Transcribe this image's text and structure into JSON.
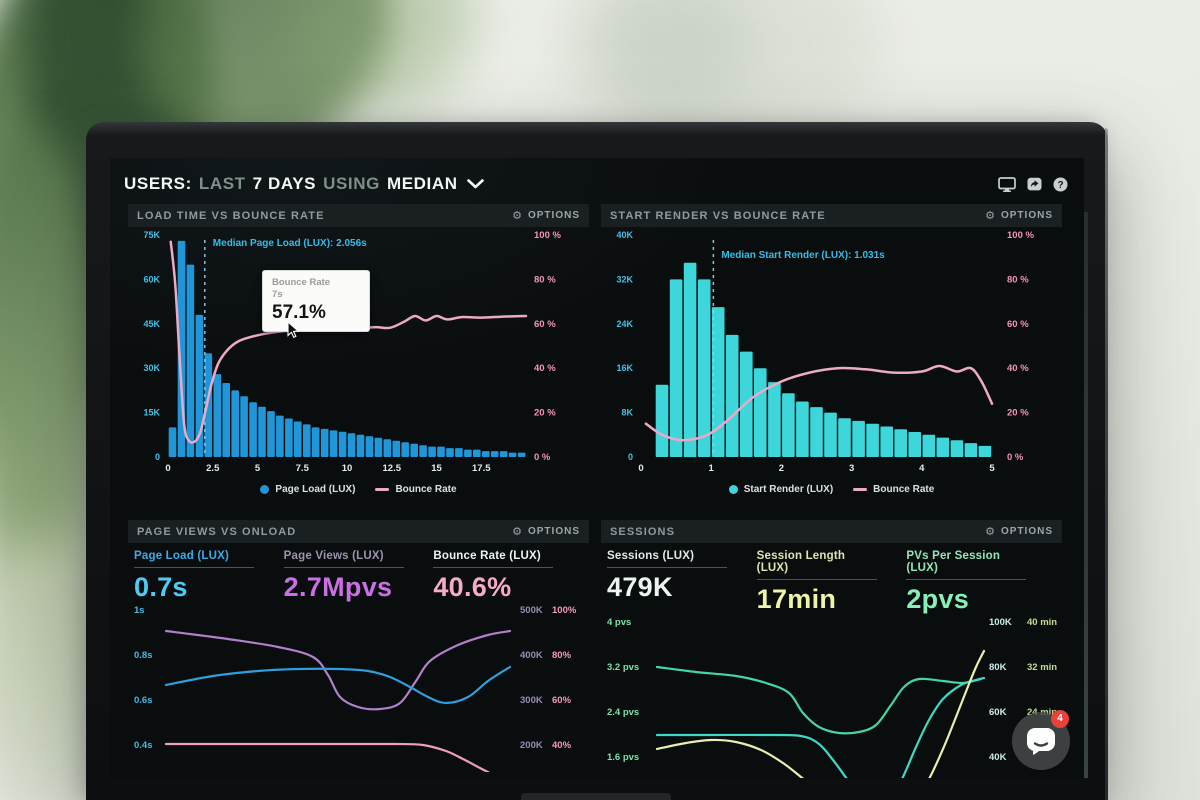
{
  "header": {
    "title_segments": [
      {
        "text": "USERS:",
        "dim": false
      },
      {
        "text": "LAST",
        "dim": true
      },
      {
        "text": "7 DAYS",
        "dim": false
      },
      {
        "text": "USING",
        "dim": true
      },
      {
        "text": "MEDIAN",
        "dim": false
      }
    ],
    "icons": [
      "display",
      "new-window",
      "help"
    ]
  },
  "labels": {
    "options": "OPTIONS"
  },
  "chat": {
    "badge": "4"
  },
  "colors": {
    "screen_bg": "#0a0d0e",
    "panel_header_bg": "#1a2021",
    "bars_blue": "#2095d8",
    "bars_cyan": "#3dd6da",
    "bounce_line_pink": "#edaac6",
    "axis_cyan": "#41c3e8",
    "axis_pink": "#f593b6",
    "median_cyan": "#35bce8",
    "badge_red": "#e8413a"
  },
  "chart_data": [
    {
      "type": "bar",
      "title": "LOAD TIME VS BOUNCE RATE",
      "bars_name": "Page Load (LUX)",
      "line_name": "Bounce Rate",
      "bar_color": "#2095d8",
      "line_color": "#edaac6",
      "x_ticks": [
        "0",
        "2.5",
        "5",
        "7.5",
        "10",
        "12.5",
        "15",
        "17.5"
      ],
      "x_max": 20,
      "bin_width": 0.5,
      "y_left_ticks": [
        "75K",
        "60K",
        "45K",
        "30K",
        "15K",
        "0"
      ],
      "y_left_max_k": 75,
      "y_right_ticks": [
        "100 %",
        "80 %",
        "60 %",
        "40 %",
        "20 %",
        "0 %"
      ],
      "bar_values_k": [
        10,
        73,
        65,
        48,
        35,
        28,
        25,
        22.5,
        20.5,
        18.5,
        17,
        15.5,
        14,
        13,
        12,
        11,
        10,
        9.5,
        9,
        8.5,
        8,
        7.5,
        7,
        6.5,
        6,
        5.5,
        5,
        4.5,
        4,
        3.5,
        3.5,
        3,
        3,
        2.5,
        2.5,
        2,
        2,
        2,
        1.5,
        1.5
      ],
      "line_points_s_pct": [
        [
          0.15,
          97
        ],
        [
          0.4,
          78
        ],
        [
          0.65,
          45
        ],
        [
          0.9,
          15
        ],
        [
          1.15,
          7.5
        ],
        [
          1.5,
          7
        ],
        [
          1.8,
          11
        ],
        [
          2.1,
          21
        ],
        [
          2.4,
          32
        ],
        [
          2.8,
          42
        ],
        [
          3.3,
          48
        ],
        [
          3.9,
          52
        ],
        [
          4.6,
          54
        ],
        [
          5.4,
          55.5
        ],
        [
          6.2,
          56.5
        ],
        [
          7,
          57.1
        ],
        [
          8,
          57.5
        ],
        [
          9,
          57.8
        ],
        [
          10,
          57.5
        ],
        [
          10.8,
          58
        ],
        [
          11.6,
          58.5
        ],
        [
          12.4,
          58.2
        ],
        [
          13.2,
          61
        ],
        [
          13.8,
          63.5
        ],
        [
          14.4,
          61.5
        ],
        [
          15,
          63.5
        ],
        [
          15.6,
          62
        ],
        [
          16.4,
          63
        ],
        [
          17.4,
          62.8
        ],
        [
          18.6,
          63.2
        ],
        [
          20,
          63.5
        ]
      ],
      "median": {
        "label": "Median Page Load (LUX): 2.056s",
        "value_s": 2.056
      },
      "tooltip": {
        "title": "Bounce Rate",
        "x_label": "7s",
        "value": "57.1%"
      },
      "legend": [
        {
          "label": "Page Load (LUX)",
          "swatch": "dot"
        },
        {
          "label": "Bounce Rate",
          "swatch": "line"
        }
      ]
    },
    {
      "type": "bar",
      "title": "START RENDER VS BOUNCE RATE",
      "bars_name": "Start Render (LUX)",
      "line_name": "Bounce Rate",
      "bar_color": "#3dd6da",
      "line_color": "#edaac6",
      "x_ticks": [
        "0",
        "1",
        "2",
        "3",
        "4",
        "5"
      ],
      "x_max": 5.1,
      "bin_width": 0.2,
      "y_left_ticks": [
        "40K",
        "32K",
        "24K",
        "16K",
        "8K",
        "0"
      ],
      "y_left_max_k": 40,
      "y_right_ticks": [
        "100 %",
        "80 %",
        "60 %",
        "40 %",
        "20 %",
        "0 %"
      ],
      "bar_values_k": [
        0,
        13,
        32,
        35,
        32,
        27,
        22,
        19,
        16,
        13.5,
        11.5,
        10,
        9,
        8,
        7,
        6.5,
        6,
        5.5,
        5,
        4.5,
        4,
        3.5,
        3,
        2.5,
        2
      ],
      "line_points_s_pct": [
        [
          0.07,
          15
        ],
        [
          0.3,
          10
        ],
        [
          0.6,
          7.5
        ],
        [
          0.95,
          10
        ],
        [
          1.25,
          17
        ],
        [
          1.6,
          27
        ],
        [
          2.0,
          34
        ],
        [
          2.4,
          38
        ],
        [
          2.8,
          40
        ],
        [
          3.2,
          39.5
        ],
        [
          3.6,
          38
        ],
        [
          4.0,
          38.5
        ],
        [
          4.25,
          41
        ],
        [
          4.5,
          38.5
        ],
        [
          4.7,
          40
        ],
        [
          4.85,
          34
        ],
        [
          5.0,
          24
        ]
      ],
      "median": {
        "label": "Median Start Render (LUX): 1.031s",
        "value_s": 1.031
      },
      "legend": [
        {
          "label": "Start Render (LUX)",
          "swatch": "dot"
        },
        {
          "label": "Bounce Rate",
          "swatch": "line"
        }
      ]
    },
    {
      "type": "line",
      "title": "PAGE VIEWS VS ONLOAD",
      "metrics": [
        {
          "label": "Page Load (LUX)",
          "value": "0.7s",
          "label_color": "#3fa9e6",
          "value_color": "#4ecdf4"
        },
        {
          "label": "Page Views (LUX)",
          "value": "2.7Mpvs",
          "label_color": "#9b93af",
          "value_color": "#cb70e4"
        },
        {
          "label": "Bounce Rate (LUX)",
          "value": "40.6%",
          "label_color": "#eef3f3",
          "value_color": "#f7abca"
        }
      ],
      "y_left_ticks": [
        "1s",
        "0.8s",
        "0.6s",
        "0.4s"
      ],
      "y_left_color": "#46b9de",
      "y_right_rows": [
        [
          "500K",
          "100%"
        ],
        [
          "400K",
          "80%"
        ],
        [
          "300K",
          "60%"
        ],
        [
          "200K",
          "40%"
        ]
      ],
      "y_right_colors": [
        "#978db2",
        "#f49ab9"
      ],
      "right_col_x": [
        392,
        424
      ],
      "lines": [
        {
          "name": "Page Views (LUX)",
          "color": "#b27fca",
          "points": [
            [
              38,
              26
            ],
            [
              100,
              34
            ],
            [
              150,
              42
            ],
            [
              185,
              52
            ],
            [
              200,
              70
            ],
            [
              212,
              92
            ],
            [
              230,
              102
            ],
            [
              252,
              104
            ],
            [
              272,
              98
            ],
            [
              288,
              76
            ],
            [
              302,
              56
            ],
            [
              330,
              40
            ],
            [
              360,
              30
            ],
            [
              382,
              26
            ]
          ]
        },
        {
          "name": "Page Load (LUX)",
          "color": "#2f9fdc",
          "points": [
            [
              38,
              80
            ],
            [
              85,
              71
            ],
            [
              130,
              66
            ],
            [
              170,
              64
            ],
            [
              210,
              64
            ],
            [
              240,
              66
            ],
            [
              262,
              72
            ],
            [
              282,
              82
            ],
            [
              300,
              92
            ],
            [
              318,
              98
            ],
            [
              340,
              92
            ],
            [
              360,
              76
            ],
            [
              382,
              62
            ]
          ]
        },
        {
          "name": "Bounce Rate (LUX)",
          "color": "#ef9fbe",
          "points": [
            [
              38,
              139
            ],
            [
              120,
              139
            ],
            [
              200,
              139
            ],
            [
              265,
              139
            ],
            [
              295,
              140
            ],
            [
              318,
              146
            ],
            [
              335,
              154
            ],
            [
              352,
              163
            ],
            [
              366,
              170
            ],
            [
              376,
              173
            ]
          ]
        }
      ]
    },
    {
      "type": "line",
      "title": "SESSIONS",
      "metrics": [
        {
          "label": "Sessions (LUX)",
          "value": "479K",
          "label_color": "#e3ebe7",
          "value_color": "#ecf6f0"
        },
        {
          "label": "Session Length (LUX)",
          "value": "17min",
          "label_color": "#dee5b0",
          "value_color": "#f0f3a8"
        },
        {
          "label": "PVs Per Session (LUX)",
          "value": "2pvs",
          "label_color": "#92e7ba",
          "value_color": "#8aeeb8"
        }
      ],
      "y_left_ticks": [
        "4 pvs",
        "3.2 pvs",
        "2.4 pvs",
        "1.6 pvs"
      ],
      "y_left_color": "#7fe2a8",
      "y_right_rows": [
        [
          "100K",
          "40 min"
        ],
        [
          "80K",
          "32 min"
        ],
        [
          "60K",
          "24 min"
        ],
        [
          "40K",
          ""
        ]
      ],
      "y_right_colors": [
        "#cdeee2",
        "#c6dc8e"
      ],
      "right_col_x": [
        388,
        426
      ],
      "lines": [
        {
          "name": "PVs Per Session (LUX)",
          "color": "#45d6a3",
          "points": [
            [
              56,
              50
            ],
            [
              95,
              55
            ],
            [
              135,
              59
            ],
            [
              165,
              66
            ],
            [
              188,
              76
            ],
            [
              202,
              96
            ],
            [
              218,
              110
            ],
            [
              238,
              116
            ],
            [
              258,
              115
            ],
            [
              275,
              108
            ],
            [
              290,
              88
            ],
            [
              303,
              70
            ],
            [
              318,
              62
            ],
            [
              342,
              64
            ],
            [
              362,
              66
            ],
            [
              380,
              62
            ]
          ]
        },
        {
          "name": "Sessions (LUX)",
          "color": "#3fd8c2",
          "points": [
            [
              56,
              118
            ],
            [
              110,
              118
            ],
            [
              165,
              118
            ],
            [
              200,
              119
            ],
            [
              218,
              127
            ],
            [
              232,
              143
            ],
            [
              246,
              162
            ],
            [
              260,
              180
            ],
            [
              275,
              190
            ],
            [
              290,
              183
            ],
            [
              302,
              160
            ],
            [
              315,
              130
            ],
            [
              328,
              103
            ],
            [
              342,
              82
            ],
            [
              360,
              68
            ],
            [
              375,
              63
            ],
            [
              383,
              61
            ]
          ]
        },
        {
          "name": "Session Length (LUX)",
          "color": "#e9edaf",
          "points": [
            [
              56,
              132
            ],
            [
              85,
              126
            ],
            [
              110,
              123
            ],
            [
              135,
              125
            ],
            [
              160,
              133
            ],
            [
              182,
              146
            ],
            [
              200,
              160
            ],
            [
              215,
              172
            ],
            [
              228,
              182
            ],
            [
              242,
              192
            ],
            [
              258,
              202
            ],
            [
              275,
              208
            ],
            [
              295,
              204
            ],
            [
              312,
              188
            ],
            [
              328,
              162
            ],
            [
              342,
              132
            ],
            [
              355,
              100
            ],
            [
              366,
              72
            ],
            [
              375,
              50
            ],
            [
              383,
              34
            ]
          ]
        }
      ]
    }
  ]
}
